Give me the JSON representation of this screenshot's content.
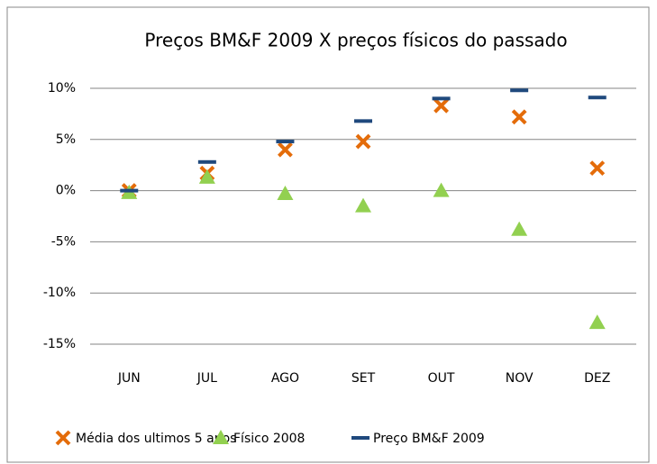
{
  "chart_data": {
    "type": "scatter",
    "title": "Preços BM&F 2009 X preços físicos do passado",
    "categories": [
      "JUN",
      "JUL",
      "AGO",
      "SET",
      "OUT",
      "NOV",
      "DEZ"
    ],
    "series": [
      {
        "name": "Média dos ultimos 5 anos",
        "color": "#e46c0a",
        "marker": "x",
        "values": [
          0,
          1.7,
          4.0,
          4.8,
          8.3,
          7.2,
          2.2
        ]
      },
      {
        "name": "Físico 2008",
        "color": "#92d050",
        "marker": "triangle",
        "values": [
          -0.2,
          1.3,
          -0.3,
          -1.5,
          0,
          -3.8,
          -12.9
        ]
      },
      {
        "name": "Preço BM&F 2009",
        "color": "#1f497d",
        "marker": "dash",
        "values": [
          0,
          2.8,
          4.8,
          6.8,
          9.0,
          9.8,
          9.1
        ]
      }
    ],
    "ylim": [
      -15,
      10
    ],
    "yticks": [
      {
        "value": 10,
        "label": "10%"
      },
      {
        "value": 5,
        "label": "5%"
      },
      {
        "value": 0,
        "label": "0%"
      },
      {
        "value": -5,
        "label": "-5%"
      },
      {
        "value": -10,
        "label": "-10%"
      },
      {
        "value": -15,
        "label": "-15%"
      }
    ],
    "negative_tick_color": "#ff0000",
    "grid": true,
    "legend": "bottom"
  }
}
